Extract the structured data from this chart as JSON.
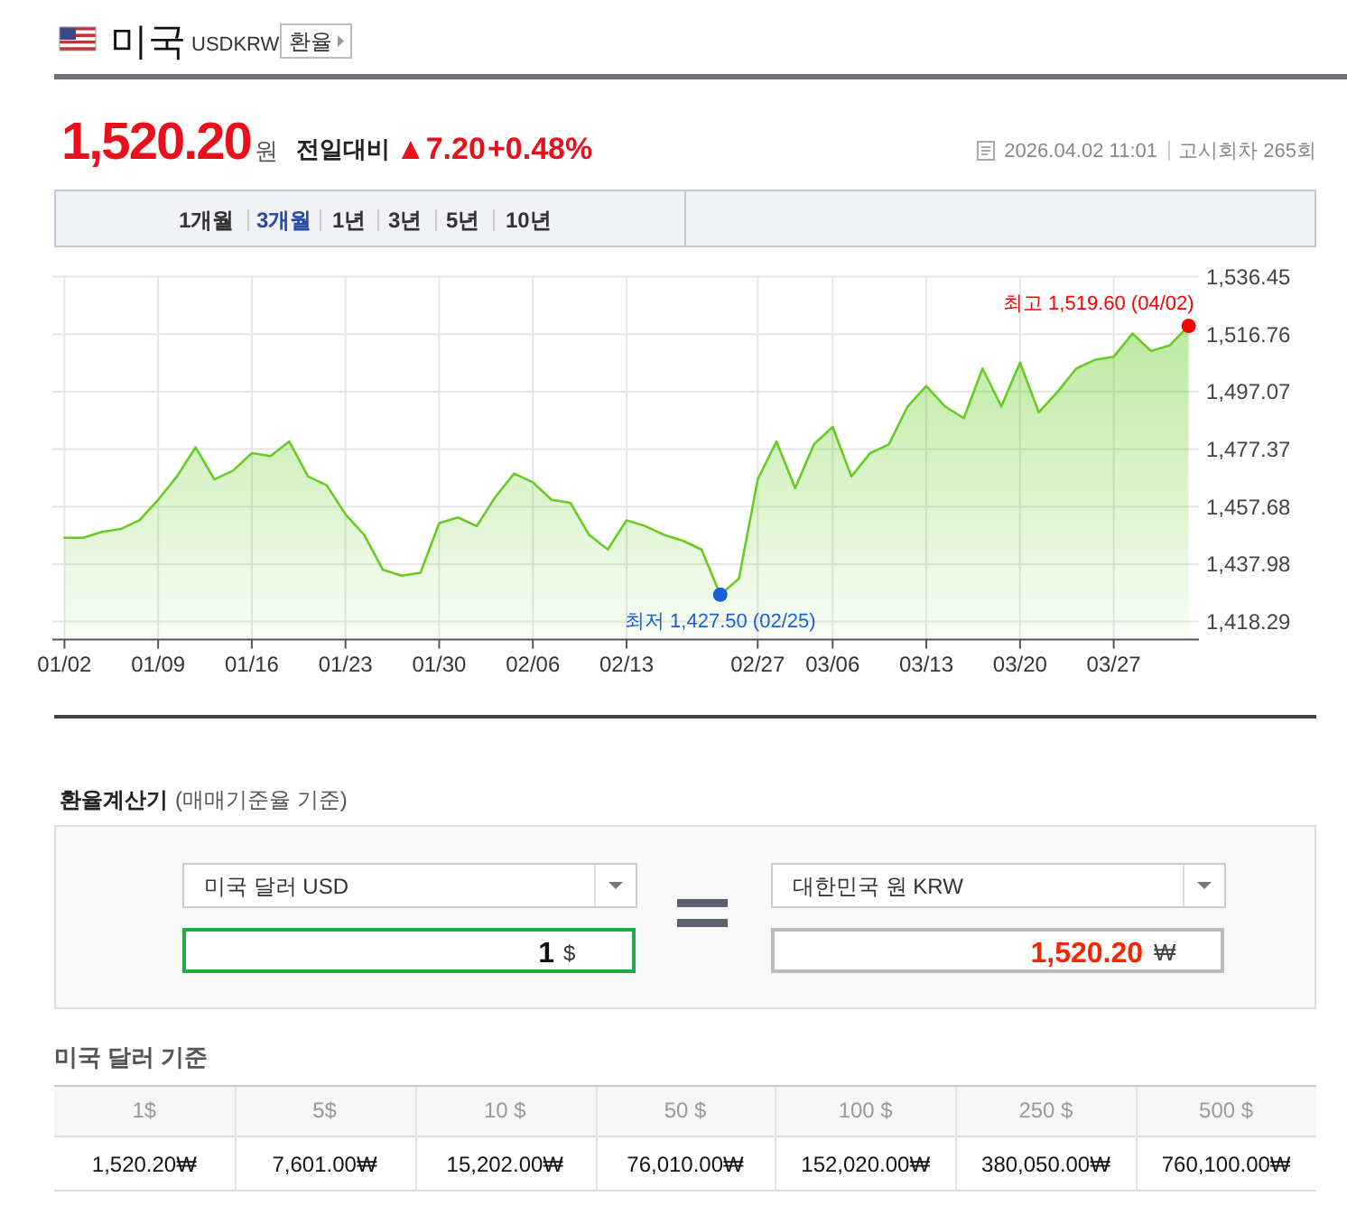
{
  "chart_data": [
    {
      "type": "other",
      "title": "미국",
      "subtitle": "USDKRW",
      "annotations": [
        "환율",
        "1,520.20",
        "원",
        "전일대비",
        "▲7.20",
        "+0.48%",
        "2026.04.02 11:01",
        "고시회차 265회",
        "1개월",
        "3개월",
        "1년",
        "3년",
        "5년",
        "10년"
      ]
    },
    {
      "type": "area",
      "categories": [
        "01/02",
        null,
        null,
        null,
        null,
        "01/09",
        null,
        null,
        null,
        null,
        "01/16",
        null,
        null,
        null,
        null,
        "01/23",
        null,
        null,
        null,
        null,
        "01/30",
        null,
        null,
        null,
        null,
        "02/06",
        null,
        null,
        null,
        null,
        "02/13",
        null,
        null,
        null,
        null,
        null,
        null,
        "02/27",
        null,
        null,
        null,
        "03/06",
        null,
        null,
        null,
        null,
        "03/13",
        null,
        null,
        null,
        null,
        "03/20",
        null,
        null,
        null,
        null,
        "03/27",
        null,
        null,
        null,
        null
      ],
      "series": [
        {
          "color": "#66cc22",
          "values": [
            1447,
            1447,
            1449,
            1450,
            1453,
            1460,
            1468,
            1478,
            1467,
            1470,
            1476,
            1475,
            1480,
            1468,
            1465,
            1455,
            1448,
            1436,
            1434,
            1435,
            1452,
            1454,
            1451,
            1461,
            1469,
            1466,
            1460,
            1459,
            1448,
            1443,
            1453,
            1451,
            1448,
            1446,
            1443,
            1427.5,
            1433,
            1467,
            1480,
            1464,
            1479,
            1485,
            1468,
            1476,
            1479,
            1492,
            1499,
            1492,
            1488,
            1505,
            1492,
            1507,
            1490,
            1497,
            1505,
            1508,
            1509,
            1517,
            1511,
            1513,
            1519.6
          ]
        },
        {
          "type": "scatter",
          "color": "#ff0000",
          "values": [
            null,
            null,
            null,
            null,
            null,
            null,
            null,
            null,
            null,
            null,
            null,
            null,
            null,
            null,
            null,
            null,
            null,
            null,
            null,
            null,
            null,
            null,
            null,
            null,
            null,
            null,
            null,
            null,
            null,
            null,
            null,
            null,
            null,
            null,
            null,
            null,
            null,
            null,
            null,
            null,
            null,
            null,
            null,
            null,
            null,
            null,
            null,
            null,
            null,
            null,
            null,
            null,
            null,
            null,
            null,
            null,
            null,
            null,
            null,
            null,
            1519.6
          ]
        },
        {
          "type": "scatter",
          "color": "#1a5fd6",
          "values": [
            null,
            null,
            null,
            null,
            null,
            null,
            null,
            null,
            null,
            null,
            null,
            null,
            null,
            null,
            null,
            null,
            null,
            null,
            null,
            null,
            null,
            null,
            null,
            null,
            null,
            null,
            null,
            null,
            null,
            null,
            null,
            null,
            null,
            null,
            null,
            1427.5,
            null,
            null,
            null,
            null,
            null,
            null,
            null,
            null,
            null,
            null,
            null,
            null,
            null,
            null,
            null,
            null,
            null,
            null,
            null,
            null,
            null,
            null,
            null,
            null,
            null
          ]
        }
      ],
      "ylim": [
        1412.1,
        1536.45
      ],
      "yticks": [
        {
          "value": 1418.29,
          "label": "1,418.29"
        },
        {
          "value": 1437.98,
          "label": "1,437.98"
        },
        {
          "value": 1457.68,
          "label": "1,457.68"
        },
        {
          "value": 1477.37,
          "label": "1,477.37"
        },
        {
          "value": 1497.07,
          "label": "1,497.07"
        },
        {
          "value": 1516.76,
          "label": "1,516.76"
        },
        {
          "value": 1536.45,
          "label": "1,536.45"
        }
      ],
      "grid": true,
      "annotations": [
        "최고 1,519.60 (04/02)",
        "최저 1,427.50 (02/25)"
      ]
    },
    {
      "type": "other",
      "title": "환율계산기",
      "subtitle": "(매매기준율 기준)",
      "annotations": [
        "미국 달러 USD",
        "1",
        "$",
        "대한민국 원 KRW",
        "1,520.20",
        "₩"
      ]
    },
    {
      "type": "other",
      "title": "미국 달러 기준",
      "categories": [
        "1$",
        "5$",
        "10 $",
        "50 $",
        "100 $",
        "250 $",
        "500 $"
      ],
      "annotations": [
        "1,520.20₩",
        "7,601.00₩",
        "15,202.00₩",
        "76,010.00₩",
        "152,020.00₩",
        "380,050.00₩",
        "760,100.00₩"
      ]
    }
  ]
}
